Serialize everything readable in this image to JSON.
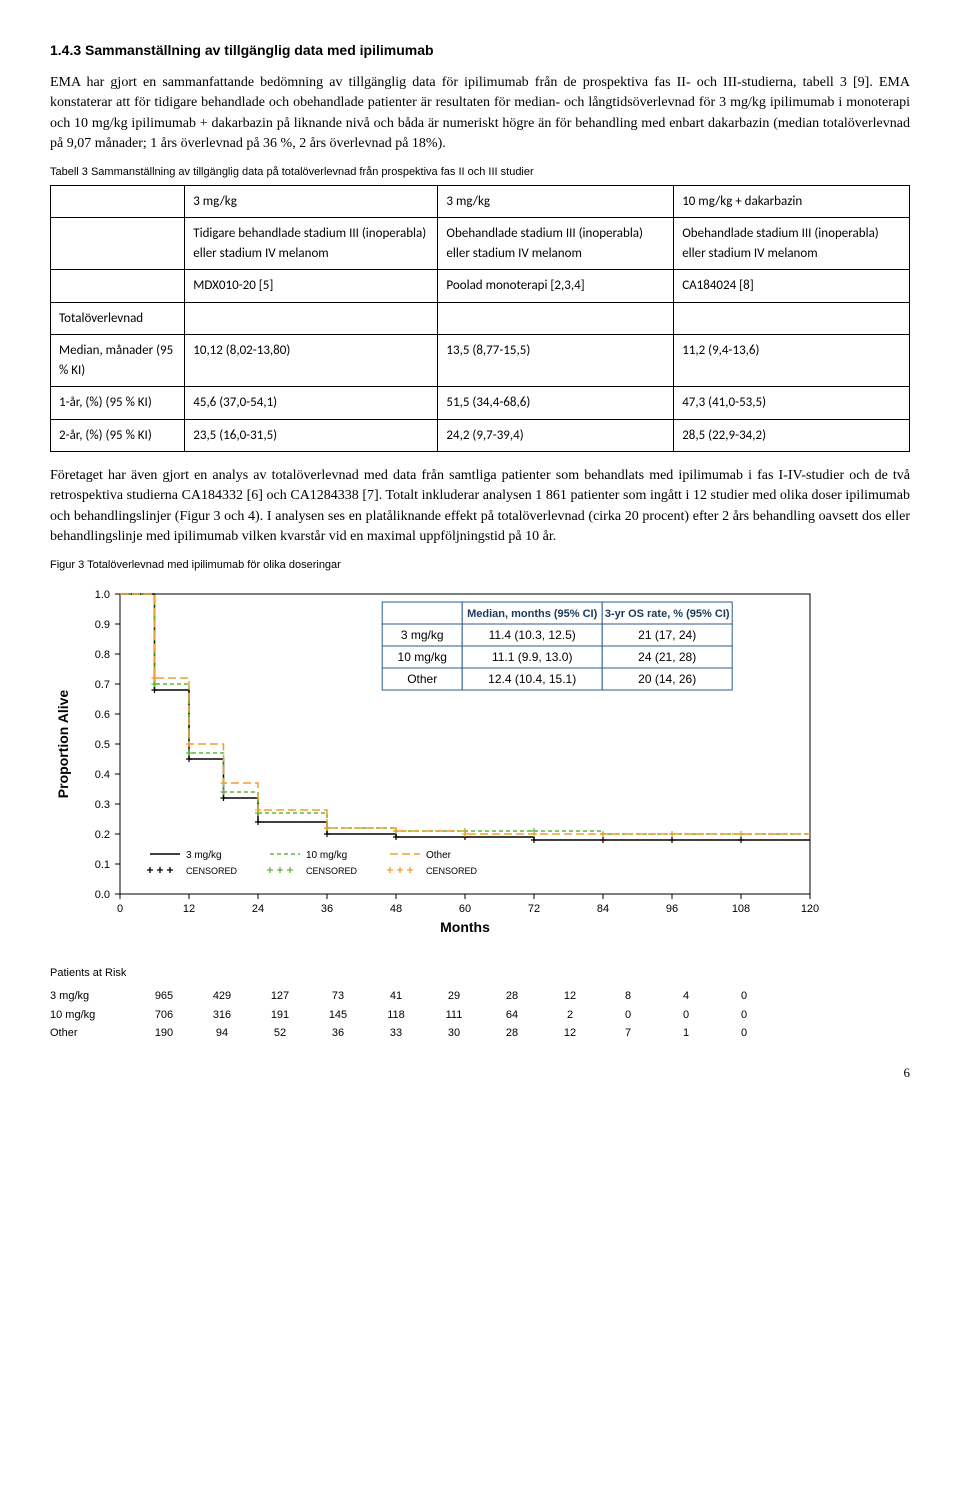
{
  "heading": "1.4.3   Sammanställning av tillgänglig data med ipilimumab",
  "para1": "EMA har gjort en sammanfattande bedömning av tillgänglig data för ipilimumab från de prospektiva fas II- och III-studierna, tabell 3 [9]. EMA konstaterar att för tidigare behandlade och obehandlade patienter är resultaten för median- och långtidsöverlevnad för 3 mg/kg ipilimumab i monoterapi och 10 mg/kg ipilimumab + dakarbazin på liknande nivå och båda är numeriskt högre än för behandling med enbart dakarbazin (median totalöverlevnad på 9,07 månader; 1 års överlevnad på 36 %, 2 års överlevnad på 18%).",
  "table3": {
    "caption": "Tabell 3 Sammanställning av tillgänglig data på totalöverlevnad från prospektiva fas II och III studier",
    "header": [
      "",
      "3 mg/kg",
      "3 mg/kg",
      "10 mg/kg + dakarbazin"
    ],
    "row_desc": [
      "",
      "Tidigare behandlade stadium III (inoperabla) eller stadium IV melanom",
      "Obehandlade stadium III (inoperabla) eller stadium IV melanom",
      "Obehandlade stadium III (inoperabla) eller stadium IV melanom"
    ],
    "row_study": [
      "",
      "MDX010-20 [5]",
      "Poolad monoterapi [2,3,4]",
      "CA184024 [8]"
    ],
    "row_totallabel": "Totalöverlevnad",
    "row_median": [
      "Median, månader (95 % KI)",
      "10,12 (8,02-13,80)",
      "13,5 (8,77-15,5)",
      "11,2 (9,4-13,6)"
    ],
    "row_1yr": [
      "1-år, (%) (95 % KI)",
      "45,6 (37,0-54,1)",
      "51,5 (34,4-68,6)",
      "47,3 (41,0-53,5)"
    ],
    "row_2yr": [
      "2-år, (%) (95 % KI)",
      "23,5 (16,0-31,5)",
      "24,2 (9,7-39,4)",
      "28,5 (22,9-34,2)"
    ]
  },
  "para2": "Företaget har även gjort en analys av totalöverlevnad med data från samtliga patienter som behandlats med ipilimumab i fas I-IV-studier och de två retrospektiva studierna CA184332 [6] och CA1284338 [7]. Totalt inkluderar analysen 1 861 patienter som ingått i 12 studier med olika doser ipilimumab och behandlingslinjer (Figur 3 och 4). I analysen ses en platåliknande effekt på totalöverlevnad (cirka 20 procent) efter 2 års behandling oavsett dos eller behandlingslinje med ipilimumab vilken kvarstår vid en maximal uppföljningstid på 10 år.",
  "fig3": {
    "caption": "Figur 3 Totalöverlevnad med ipilimumab för olika doseringar",
    "ylabel": "Proportion Alive",
    "xlabel": "Months",
    "ylim": [
      0.0,
      1.0
    ],
    "ytick_step": 0.1,
    "xlim": [
      0,
      120
    ],
    "xtick_step": 12,
    "background_color": "#ffffff",
    "grid_color": "#d0d0d0",
    "series": [
      {
        "name": "3 mg/kg",
        "color": "#000000",
        "dash": "solid",
        "censored_color": "#000000",
        "x": [
          0,
          6,
          12,
          18,
          24,
          36,
          48,
          60,
          72,
          84,
          96,
          108,
          120
        ],
        "y": [
          1.0,
          0.68,
          0.45,
          0.32,
          0.24,
          0.2,
          0.19,
          0.19,
          0.18,
          0.18,
          0.18,
          0.18,
          0.18
        ]
      },
      {
        "name": "10 mg/kg",
        "color": "#5fb83d",
        "dash": "4,3",
        "censored_color": "#5fb83d",
        "x": [
          0,
          6,
          12,
          18,
          24,
          36,
          48,
          60,
          72,
          84,
          96,
          108,
          120
        ],
        "y": [
          1.0,
          0.7,
          0.47,
          0.34,
          0.27,
          0.22,
          0.21,
          0.21,
          0.21,
          0.2,
          0.2,
          0.2,
          0.2
        ]
      },
      {
        "name": "Other",
        "color": "#f0a030",
        "dash": "8,4",
        "censored_color": "#f0a030",
        "x": [
          0,
          6,
          12,
          18,
          24,
          36,
          48,
          60,
          72,
          84,
          96,
          108,
          120
        ],
        "y": [
          1.0,
          0.72,
          0.5,
          0.37,
          0.28,
          0.22,
          0.21,
          0.2,
          0.2,
          0.2,
          0.2,
          0.2,
          0.2
        ]
      }
    ],
    "legend_table": {
      "headers": [
        "",
        "Median, months (95% CI)",
        "3-yr OS rate, % (95% CI)"
      ],
      "rows": [
        [
          "3 mg/kg",
          "11.4 (10.3, 12.5)",
          "21 (17, 24)"
        ],
        [
          "10 mg/kg",
          "11.1 (9.9, 13.0)",
          "24 (21, 28)"
        ],
        [
          "Other",
          "12.4 (10.4, 15.1)",
          "20 (14, 26)"
        ]
      ]
    },
    "line_legend": [
      {
        "label": "3 mg/kg",
        "style": "solid",
        "color": "#000"
      },
      {
        "label": "10 mg/kg",
        "style": "dash-short",
        "color": "#5fb83d"
      },
      {
        "label": "Other",
        "style": "dash-long",
        "color": "#f0a030"
      }
    ],
    "censored_legend": [
      {
        "label": "CENSORED",
        "color": "#000"
      },
      {
        "label": "CENSORED",
        "color": "#5fb83d"
      },
      {
        "label": "CENSORED",
        "color": "#f0a030"
      }
    ],
    "patients_at_risk": {
      "title": "Patients at Risk",
      "x": [
        0,
        12,
        24,
        36,
        48,
        60,
        72,
        84,
        96,
        108,
        120
      ],
      "rows": [
        {
          "label": "3 mg/kg",
          "values": [
            965,
            429,
            127,
            73,
            41,
            29,
            28,
            12,
            8,
            4,
            0
          ]
        },
        {
          "label": "10 mg/kg",
          "values": [
            706,
            316,
            191,
            145,
            118,
            111,
            64,
            2,
            0,
            0,
            0
          ]
        },
        {
          "label": "Other",
          "values": [
            190,
            94,
            52,
            36,
            33,
            30,
            28,
            12,
            7,
            1,
            0
          ]
        }
      ]
    }
  },
  "page_number": "6"
}
